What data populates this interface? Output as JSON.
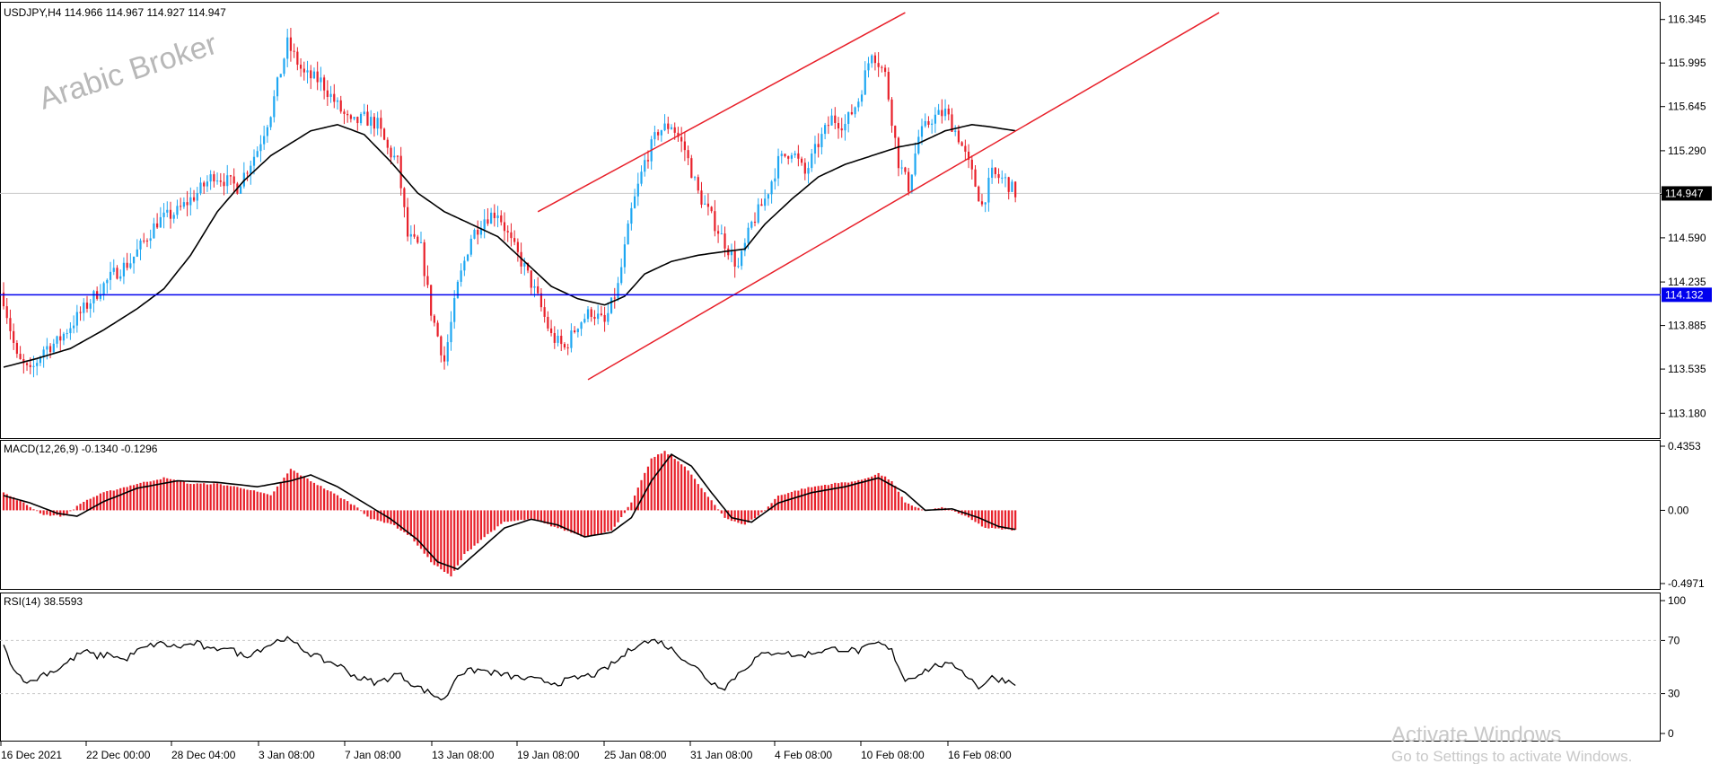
{
  "colors": {
    "bull": "#1ea7f2",
    "bear": "#e8202a",
    "channel": "#e8202a",
    "support": "#0000ee",
    "ma": "#000000",
    "macd_hist": "#e8202a",
    "grid": "#c8c8c8",
    "background": "#ffffff"
  },
  "watermark": "Arabic Broker",
  "os_notice": {
    "line1": "Activate Windows",
    "line2": "Go to Settings to activate Windows."
  },
  "chart_data": [
    {
      "type": "candlestick",
      "title": "USDJPY,H4  114.966 114.967 114.927 114.947",
      "symbol": "USDJPY,H4",
      "ohlc_header": "114.966 114.967 114.927 114.947",
      "ylim": [
        112.98,
        116.48
      ],
      "y_ticks": [
        "116.345",
        "115.995",
        "115.645",
        "115.290",
        "114.940",
        "114.590",
        "114.235",
        "113.885",
        "113.535",
        "113.180"
      ],
      "current_price": "114.947",
      "horizontal_line": "114.132",
      "x_ticks": [
        "16 Dec 2021",
        "22 Dec 00:00",
        "28 Dec 04:00",
        "3 Jan 08:00",
        "7 Jan 08:00",
        "13 Jan 08:00",
        "19 Jan 08:00",
        "25 Jan 08:00",
        "31 Jan 08:00",
        "4 Feb 08:00",
        "10 Feb 08:00",
        "16 Feb 08:00"
      ],
      "close_anchors": [
        [
          0,
          114.1
        ],
        [
          4,
          113.62
        ],
        [
          8,
          113.5
        ],
        [
          12,
          113.7
        ],
        [
          16,
          113.75
        ],
        [
          22,
          113.95
        ],
        [
          28,
          114.15
        ],
        [
          33,
          114.3
        ],
        [
          38,
          114.4
        ],
        [
          46,
          114.72
        ],
        [
          52,
          114.8
        ],
        [
          58,
          114.95
        ],
        [
          63,
          115.1
        ],
        [
          70,
          115.0
        ],
        [
          76,
          115.3
        ],
        [
          80,
          115.6
        ],
        [
          85,
          116.15
        ],
        [
          90,
          115.9
        ],
        [
          95,
          115.85
        ],
        [
          100,
          115.65
        ],
        [
          104,
          115.5
        ],
        [
          108,
          115.55
        ],
        [
          112,
          115.5
        ],
        [
          115,
          115.3
        ],
        [
          118,
          115.2
        ],
        [
          121,
          114.6
        ],
        [
          125,
          114.5
        ],
        [
          128,
          114.0
        ],
        [
          132,
          113.6
        ],
        [
          136,
          114.2
        ],
        [
          140,
          114.6
        ],
        [
          144,
          114.75
        ],
        [
          148,
          114.8
        ],
        [
          152,
          114.55
        ],
        [
          156,
          114.35
        ],
        [
          160,
          114.1
        ],
        [
          164,
          113.8
        ],
        [
          168,
          113.7
        ],
        [
          172,
          113.9
        ],
        [
          176,
          114.0
        ],
        [
          180,
          113.9
        ],
        [
          184,
          114.2
        ],
        [
          188,
          114.8
        ],
        [
          192,
          115.2
        ],
        [
          196,
          115.45
        ],
        [
          200,
          115.5
        ],
        [
          204,
          115.3
        ],
        [
          208,
          114.95
        ],
        [
          212,
          114.75
        ],
        [
          216,
          114.55
        ],
        [
          220,
          114.35
        ],
        [
          224,
          114.7
        ],
        [
          228,
          114.9
        ],
        [
          232,
          115.2
        ],
        [
          236,
          115.3
        ],
        [
          240,
          115.1
        ],
        [
          244,
          115.35
        ],
        [
          248,
          115.55
        ],
        [
          252,
          115.5
        ],
        [
          256,
          115.7
        ],
        [
          260,
          116.1
        ],
        [
          264,
          115.9
        ],
        [
          268,
          115.2
        ],
        [
          271,
          115.0
        ],
        [
          274,
          115.4
        ],
        [
          278,
          115.55
        ],
        [
          282,
          115.6
        ],
        [
          286,
          115.4
        ],
        [
          290,
          115.1
        ],
        [
          293,
          114.85
        ],
        [
          296,
          115.1
        ],
        [
          300,
          115.05
        ],
        [
          303,
          114.95
        ]
      ],
      "ma_anchors": [
        [
          0,
          113.55
        ],
        [
          10,
          113.62
        ],
        [
          20,
          113.7
        ],
        [
          30,
          113.85
        ],
        [
          40,
          114.02
        ],
        [
          48,
          114.18
        ],
        [
          56,
          114.45
        ],
        [
          64,
          114.8
        ],
        [
          72,
          115.05
        ],
        [
          80,
          115.25
        ],
        [
          86,
          115.35
        ],
        [
          92,
          115.45
        ],
        [
          100,
          115.5
        ],
        [
          108,
          115.42
        ],
        [
          116,
          115.2
        ],
        [
          124,
          114.95
        ],
        [
          132,
          114.8
        ],
        [
          140,
          114.7
        ],
        [
          148,
          114.6
        ],
        [
          156,
          114.4
        ],
        [
          164,
          114.2
        ],
        [
          172,
          114.1
        ],
        [
          180,
          114.05
        ],
        [
          186,
          114.12
        ],
        [
          192,
          114.3
        ],
        [
          200,
          114.4
        ],
        [
          208,
          114.45
        ],
        [
          216,
          114.48
        ],
        [
          222,
          114.5
        ],
        [
          228,
          114.7
        ],
        [
          236,
          114.9
        ],
        [
          244,
          115.08
        ],
        [
          252,
          115.18
        ],
        [
          260,
          115.25
        ],
        [
          268,
          115.32
        ],
        [
          274,
          115.35
        ],
        [
          282,
          115.45
        ],
        [
          290,
          115.5
        ],
        [
          296,
          115.48
        ],
        [
          303,
          115.45
        ]
      ],
      "channel_lines": [
        {
          "x": [
            160,
            270
          ],
          "y": [
            114.8,
            116.4
          ]
        },
        {
          "x": [
            175,
            364
          ],
          "y": [
            113.45,
            116.4
          ]
        }
      ]
    },
    {
      "type": "histogram",
      "title": "MACD(12,26,9) -0.1340 -0.1296",
      "ylim": [
        -0.4971,
        0.4353
      ],
      "y_ticks": [
        "0.4353",
        "0.00",
        "-0.4971"
      ],
      "hist_anchors": [
        [
          0,
          0.12
        ],
        [
          6,
          0.05
        ],
        [
          12,
          -0.03
        ],
        [
          18,
          -0.04
        ],
        [
          24,
          0.06
        ],
        [
          30,
          0.12
        ],
        [
          40,
          0.18
        ],
        [
          48,
          0.22
        ],
        [
          56,
          0.18
        ],
        [
          64,
          0.18
        ],
        [
          72,
          0.15
        ],
        [
          80,
          0.1
        ],
        [
          86,
          0.28
        ],
        [
          92,
          0.2
        ],
        [
          100,
          0.1
        ],
        [
          106,
          0.02
        ],
        [
          110,
          -0.06
        ],
        [
          116,
          -0.09
        ],
        [
          122,
          -0.18
        ],
        [
          128,
          -0.35
        ],
        [
          134,
          -0.45
        ],
        [
          138,
          -0.3
        ],
        [
          144,
          -0.18
        ],
        [
          150,
          -0.08
        ],
        [
          158,
          -0.06
        ],
        [
          166,
          -0.12
        ],
        [
          174,
          -0.18
        ],
        [
          182,
          -0.14
        ],
        [
          188,
          0.05
        ],
        [
          194,
          0.35
        ],
        [
          198,
          0.4
        ],
        [
          204,
          0.3
        ],
        [
          210,
          0.12
        ],
        [
          216,
          -0.05
        ],
        [
          222,
          -0.1
        ],
        [
          228,
          0.0
        ],
        [
          232,
          0.1
        ],
        [
          240,
          0.15
        ],
        [
          248,
          0.18
        ],
        [
          256,
          0.2
        ],
        [
          262,
          0.25
        ],
        [
          266,
          0.2
        ],
        [
          270,
          0.05
        ],
        [
          276,
          0.0
        ],
        [
          282,
          0.02
        ],
        [
          288,
          -0.04
        ],
        [
          294,
          -0.12
        ],
        [
          300,
          -0.13
        ],
        [
          303,
          -0.134
        ]
      ],
      "signal_anchors": [
        [
          0,
          0.1
        ],
        [
          8,
          0.05
        ],
        [
          16,
          -0.02
        ],
        [
          22,
          -0.04
        ],
        [
          30,
          0.06
        ],
        [
          40,
          0.15
        ],
        [
          52,
          0.2
        ],
        [
          64,
          0.19
        ],
        [
          76,
          0.16
        ],
        [
          86,
          0.2
        ],
        [
          92,
          0.24
        ],
        [
          100,
          0.16
        ],
        [
          108,
          0.05
        ],
        [
          116,
          -0.06
        ],
        [
          124,
          -0.2
        ],
        [
          130,
          -0.35
        ],
        [
          136,
          -0.4
        ],
        [
          142,
          -0.28
        ],
        [
          150,
          -0.12
        ],
        [
          158,
          -0.06
        ],
        [
          166,
          -0.1
        ],
        [
          174,
          -0.18
        ],
        [
          182,
          -0.15
        ],
        [
          188,
          -0.05
        ],
        [
          194,
          0.2
        ],
        [
          200,
          0.38
        ],
        [
          206,
          0.3
        ],
        [
          212,
          0.12
        ],
        [
          218,
          -0.05
        ],
        [
          224,
          -0.08
        ],
        [
          232,
          0.05
        ],
        [
          242,
          0.12
        ],
        [
          252,
          0.16
        ],
        [
          262,
          0.22
        ],
        [
          270,
          0.12
        ],
        [
          276,
          0.0
        ],
        [
          284,
          0.01
        ],
        [
          292,
          -0.05
        ],
        [
          298,
          -0.11
        ],
        [
          303,
          -0.1296
        ]
      ]
    },
    {
      "type": "line",
      "title": "RSI(14) 38.5593",
      "ylim": [
        0,
        100
      ],
      "y_ticks": [
        "100",
        "70",
        "30",
        "0"
      ],
      "levels": [
        70,
        30
      ],
      "rsi_anchors": [
        [
          0,
          65
        ],
        [
          4,
          45
        ],
        [
          8,
          38
        ],
        [
          12,
          45
        ],
        [
          16,
          48
        ],
        [
          20,
          55
        ],
        [
          24,
          62
        ],
        [
          28,
          58
        ],
        [
          32,
          60
        ],
        [
          36,
          55
        ],
        [
          40,
          62
        ],
        [
          46,
          68
        ],
        [
          52,
          65
        ],
        [
          58,
          68
        ],
        [
          62,
          62
        ],
        [
          66,
          66
        ],
        [
          72,
          58
        ],
        [
          78,
          65
        ],
        [
          84,
          72
        ],
        [
          88,
          66
        ],
        [
          92,
          60
        ],
        [
          96,
          55
        ],
        [
          100,
          52
        ],
        [
          106,
          42
        ],
        [
          112,
          38
        ],
        [
          118,
          45
        ],
        [
          124,
          35
        ],
        [
          128,
          30
        ],
        [
          132,
          25
        ],
        [
          136,
          45
        ],
        [
          142,
          48
        ],
        [
          148,
          45
        ],
        [
          154,
          42
        ],
        [
          160,
          40
        ],
        [
          166,
          38
        ],
        [
          172,
          42
        ],
        [
          178,
          45
        ],
        [
          184,
          55
        ],
        [
          190,
          68
        ],
        [
          196,
          70
        ],
        [
          202,
          60
        ],
        [
          208,
          48
        ],
        [
          212,
          38
        ],
        [
          216,
          35
        ],
        [
          220,
          45
        ],
        [
          226,
          58
        ],
        [
          232,
          62
        ],
        [
          238,
          58
        ],
        [
          244,
          62
        ],
        [
          250,
          64
        ],
        [
          256,
          62
        ],
        [
          262,
          68
        ],
        [
          266,
          62
        ],
        [
          270,
          40
        ],
        [
          274,
          45
        ],
        [
          280,
          52
        ],
        [
          286,
          50
        ],
        [
          292,
          35
        ],
        [
          296,
          42
        ],
        [
          300,
          40
        ],
        [
          303,
          38.56
        ]
      ]
    }
  ]
}
